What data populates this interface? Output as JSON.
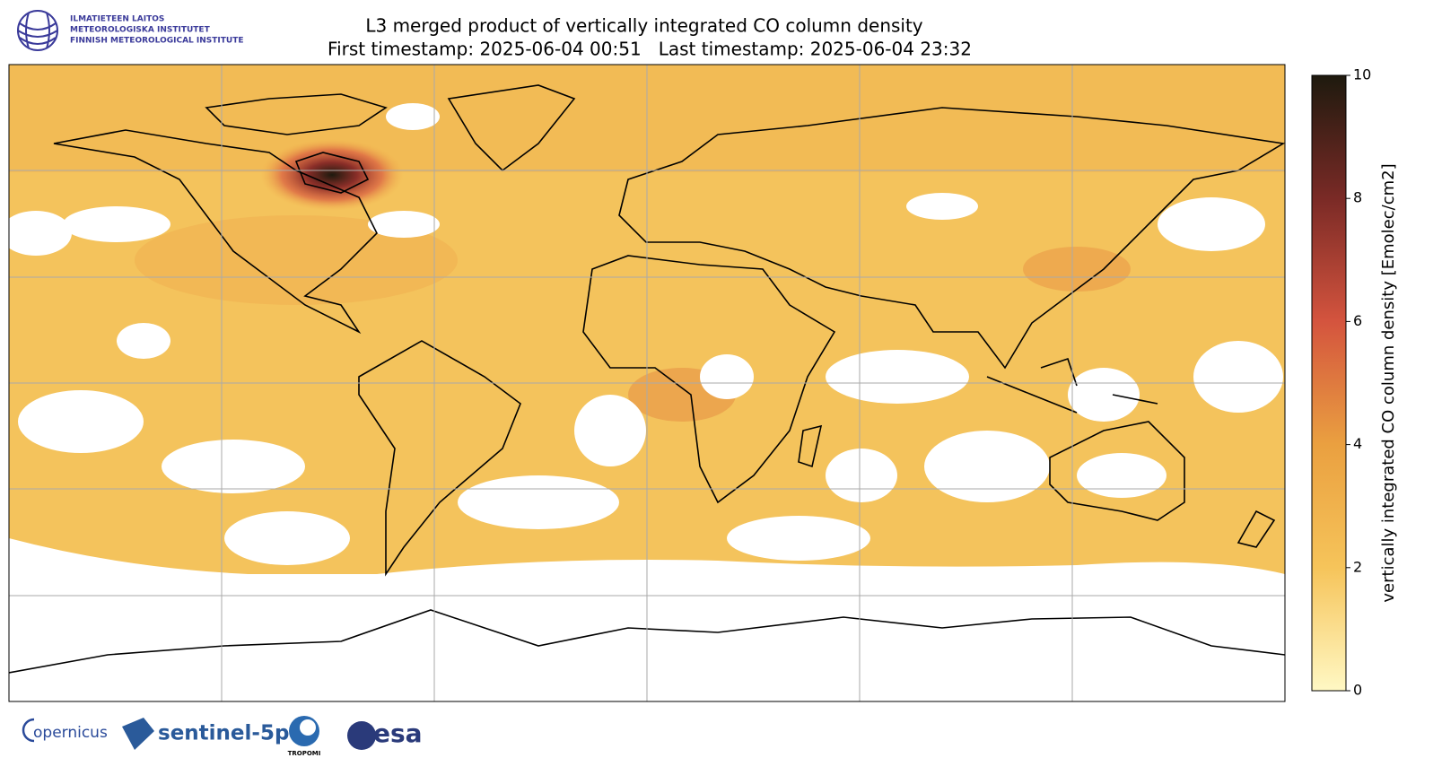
{
  "header": {
    "institute_lines": [
      "ILMATIETEEN LAITOS",
      "METEOROLOGISKA INSTITUTET",
      "FINNISH METEOROLOGICAL INSTITUTE"
    ],
    "title": "L3 merged product of vertically integrated CO column density",
    "subtitle": "First timestamp: 2025-06-04 00:51   Last timestamp: 2025-06-04 23:32"
  },
  "colorbar": {
    "label": "vertically integrated CO column density [Emolec/cm2]",
    "lim": [
      0,
      10
    ],
    "ticks": [
      0,
      2,
      4,
      6,
      8,
      10
    ],
    "colors": [
      "#fff8c4",
      "#f6c45a",
      "#eaa040",
      "#d4543e",
      "#7a2a26",
      "#1e1a0e"
    ]
  },
  "footer": {
    "logos": [
      "opernicus",
      "sentinel-5p",
      "TROPOMI",
      "esa"
    ]
  }
}
